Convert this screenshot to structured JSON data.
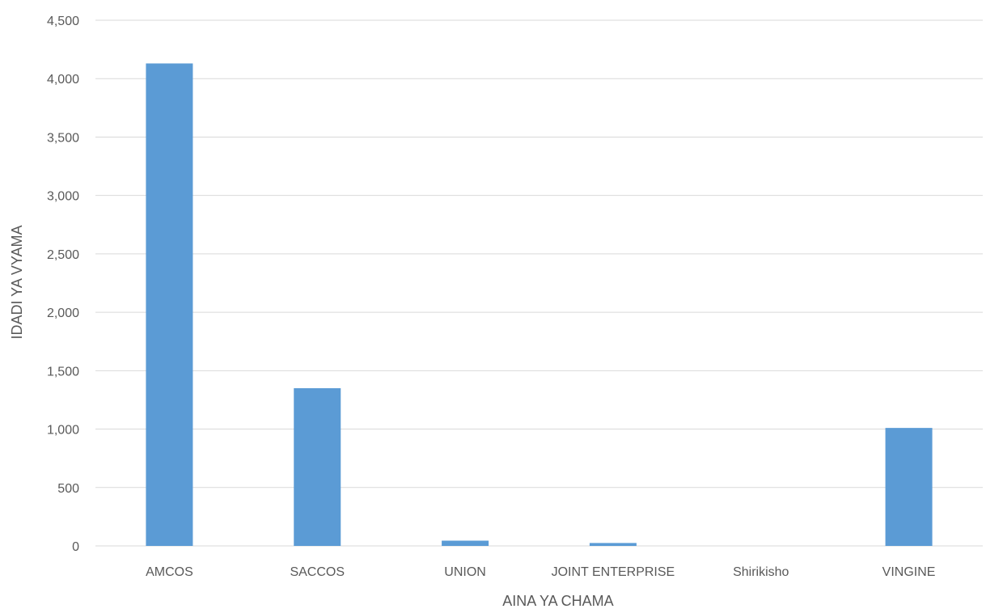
{
  "chart_data": {
    "type": "bar",
    "categories": [
      "AMCOS",
      "SACCOS",
      "UNION",
      "JOINT ENTERPRISE",
      "Shirikisho",
      "VINGINE"
    ],
    "values": [
      4130,
      1350,
      45,
      25,
      0,
      1010
    ],
    "xlabel": "AINA YA CHAMA",
    "ylabel": "IDADI YA VYAMA",
    "ylim": [
      0,
      4500
    ],
    "yticks": [
      0,
      500,
      1000,
      1500,
      2000,
      2500,
      3000,
      3500,
      4000,
      4500
    ],
    "ytick_labels": [
      "0",
      "500",
      "1,000",
      "1,500",
      "2,000",
      "2,500",
      "3,000",
      "3,500",
      "4,000",
      "4,500"
    ],
    "grid": true,
    "legend": "none",
    "bar_color": "#5b9bd5"
  }
}
